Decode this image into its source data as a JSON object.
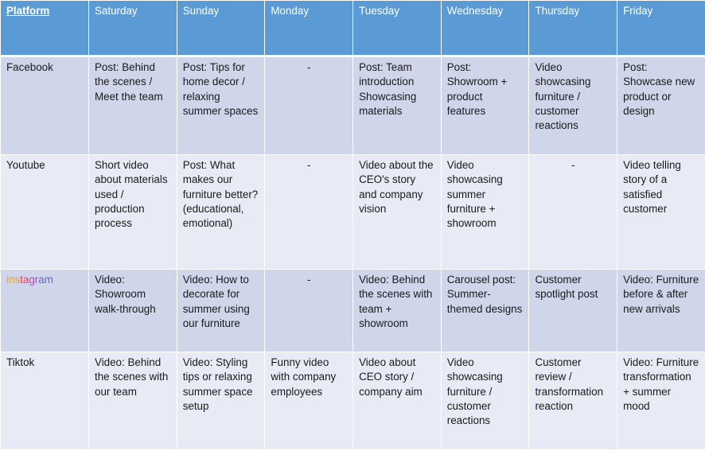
{
  "header": {
    "platform": "Platform",
    "days": [
      "Saturday",
      "Sunday",
      "Monday",
      "Tuesday",
      "Wednesday",
      "Thursday",
      "Friday"
    ]
  },
  "colors": {
    "header_bg": "#5b9bd5",
    "row_dark": "#cfd6ea",
    "row_light": "#e8ebf5",
    "facebook": "#4a72c4",
    "youtube": "#e8231b",
    "instagram_gradient": [
      "#f2a21b",
      "#e83e6b",
      "#b04bc9",
      "#6b63d6"
    ]
  },
  "rows": [
    {
      "platform": "Facebook",
      "cells": [
        "Post: Behind the scenes / Meet the team",
        "Post: Tips for home decor / relaxing summer spaces",
        "-",
        "Post: Team introduction Showcasing materials",
        "Post: Showroom + product features",
        "Video showcasing furniture / customer reactions",
        "Post: Showcase new product or design"
      ]
    },
    {
      "platform": "Youtube",
      "cells": [
        "Short video about materials used / production process",
        "Post: What makes our furniture better? (educational, emotional)",
        "-",
        "Video about the CEO's story and company vision",
        "Video showcasing summer furniture + showroom",
        "-",
        "Video telling story of a satisfied customer"
      ]
    },
    {
      "platform": "instagram",
      "cells": [
        "Video: Showroom walk-through",
        "Video: How to decorate for summer using our furniture",
        "-",
        "Video: Behind the scenes with team + showroom",
        "Carousel post: Summer-themed designs",
        "Customer spotlight post",
        "Video: Furniture before & after new arrivals"
      ]
    },
    {
      "platform": "Tiktok",
      "cells": [
        "Video: Behind the scenes with our team",
        "Video: Styling tips or relaxing summer space setup",
        "Funny video with company employees",
        "Video about CEO story / company aim",
        "Video showcasing furniture / customer reactions",
        "Customer review / transformation reaction",
        "Video: Furniture transformation + summer mood"
      ]
    }
  ]
}
